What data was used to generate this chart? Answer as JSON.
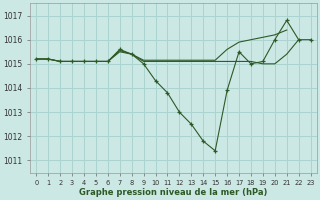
{
  "title": "Graphe pression niveau de la mer (hPa)",
  "bg_color": "#cce8e4",
  "grid_color": "#aad4d0",
  "line_color": "#2d5a27",
  "xlim": [
    -0.5,
    23.5
  ],
  "ylim": [
    1010.5,
    1017.5
  ],
  "yticks": [
    1011,
    1012,
    1013,
    1014,
    1015,
    1016,
    1017
  ],
  "xticks": [
    0,
    1,
    2,
    3,
    4,
    5,
    6,
    7,
    8,
    9,
    10,
    11,
    12,
    13,
    14,
    15,
    16,
    17,
    18,
    19,
    20,
    21,
    22,
    23
  ],
  "series": [
    {
      "x": [
        0,
        1,
        2,
        3,
        4,
        5,
        6,
        7,
        8,
        9,
        10,
        11,
        12,
        13,
        14,
        15,
        16,
        17,
        18,
        19,
        20,
        21,
        22,
        23
      ],
      "y": [
        1015.2,
        1015.2,
        1015.1,
        1015.1,
        1015.1,
        1015.1,
        1015.1,
        1015.6,
        1015.4,
        1015.0,
        1014.3,
        1013.8,
        1013.0,
        1012.5,
        1011.8,
        1011.4,
        1013.9,
        1015.5,
        1015.0,
        1015.1,
        1016.0,
        1016.8,
        1016.0,
        1016.0
      ],
      "marker": true
    },
    {
      "x": [
        0,
        1,
        2,
        3,
        4,
        5,
        6,
        7,
        8,
        9,
        10,
        11,
        12,
        13,
        14,
        15,
        16,
        17,
        18,
        19,
        20,
        21,
        22
      ],
      "y": [
        1015.2,
        1015.2,
        1015.1,
        1015.1,
        1015.1,
        1015.1,
        1015.1,
        1015.5,
        1015.4,
        1015.1,
        1015.1,
        1015.1,
        1015.1,
        1015.1,
        1015.1,
        1015.1,
        1015.1,
        1015.1,
        1015.1,
        1015.0,
        1015.0,
        1015.4,
        1016.0
      ],
      "marker": false
    },
    {
      "x": [
        0,
        1,
        2,
        3,
        4,
        5,
        6,
        7,
        8,
        9,
        10,
        11,
        12,
        13,
        14,
        15,
        16,
        17,
        18,
        19,
        20,
        21
      ],
      "y": [
        1015.2,
        1015.2,
        1015.1,
        1015.1,
        1015.1,
        1015.1,
        1015.1,
        1015.55,
        1015.4,
        1015.15,
        1015.15,
        1015.15,
        1015.15,
        1015.15,
        1015.15,
        1015.15,
        1015.6,
        1015.9,
        1016.0,
        1016.1,
        1016.2,
        1016.4
      ],
      "marker": false
    }
  ]
}
